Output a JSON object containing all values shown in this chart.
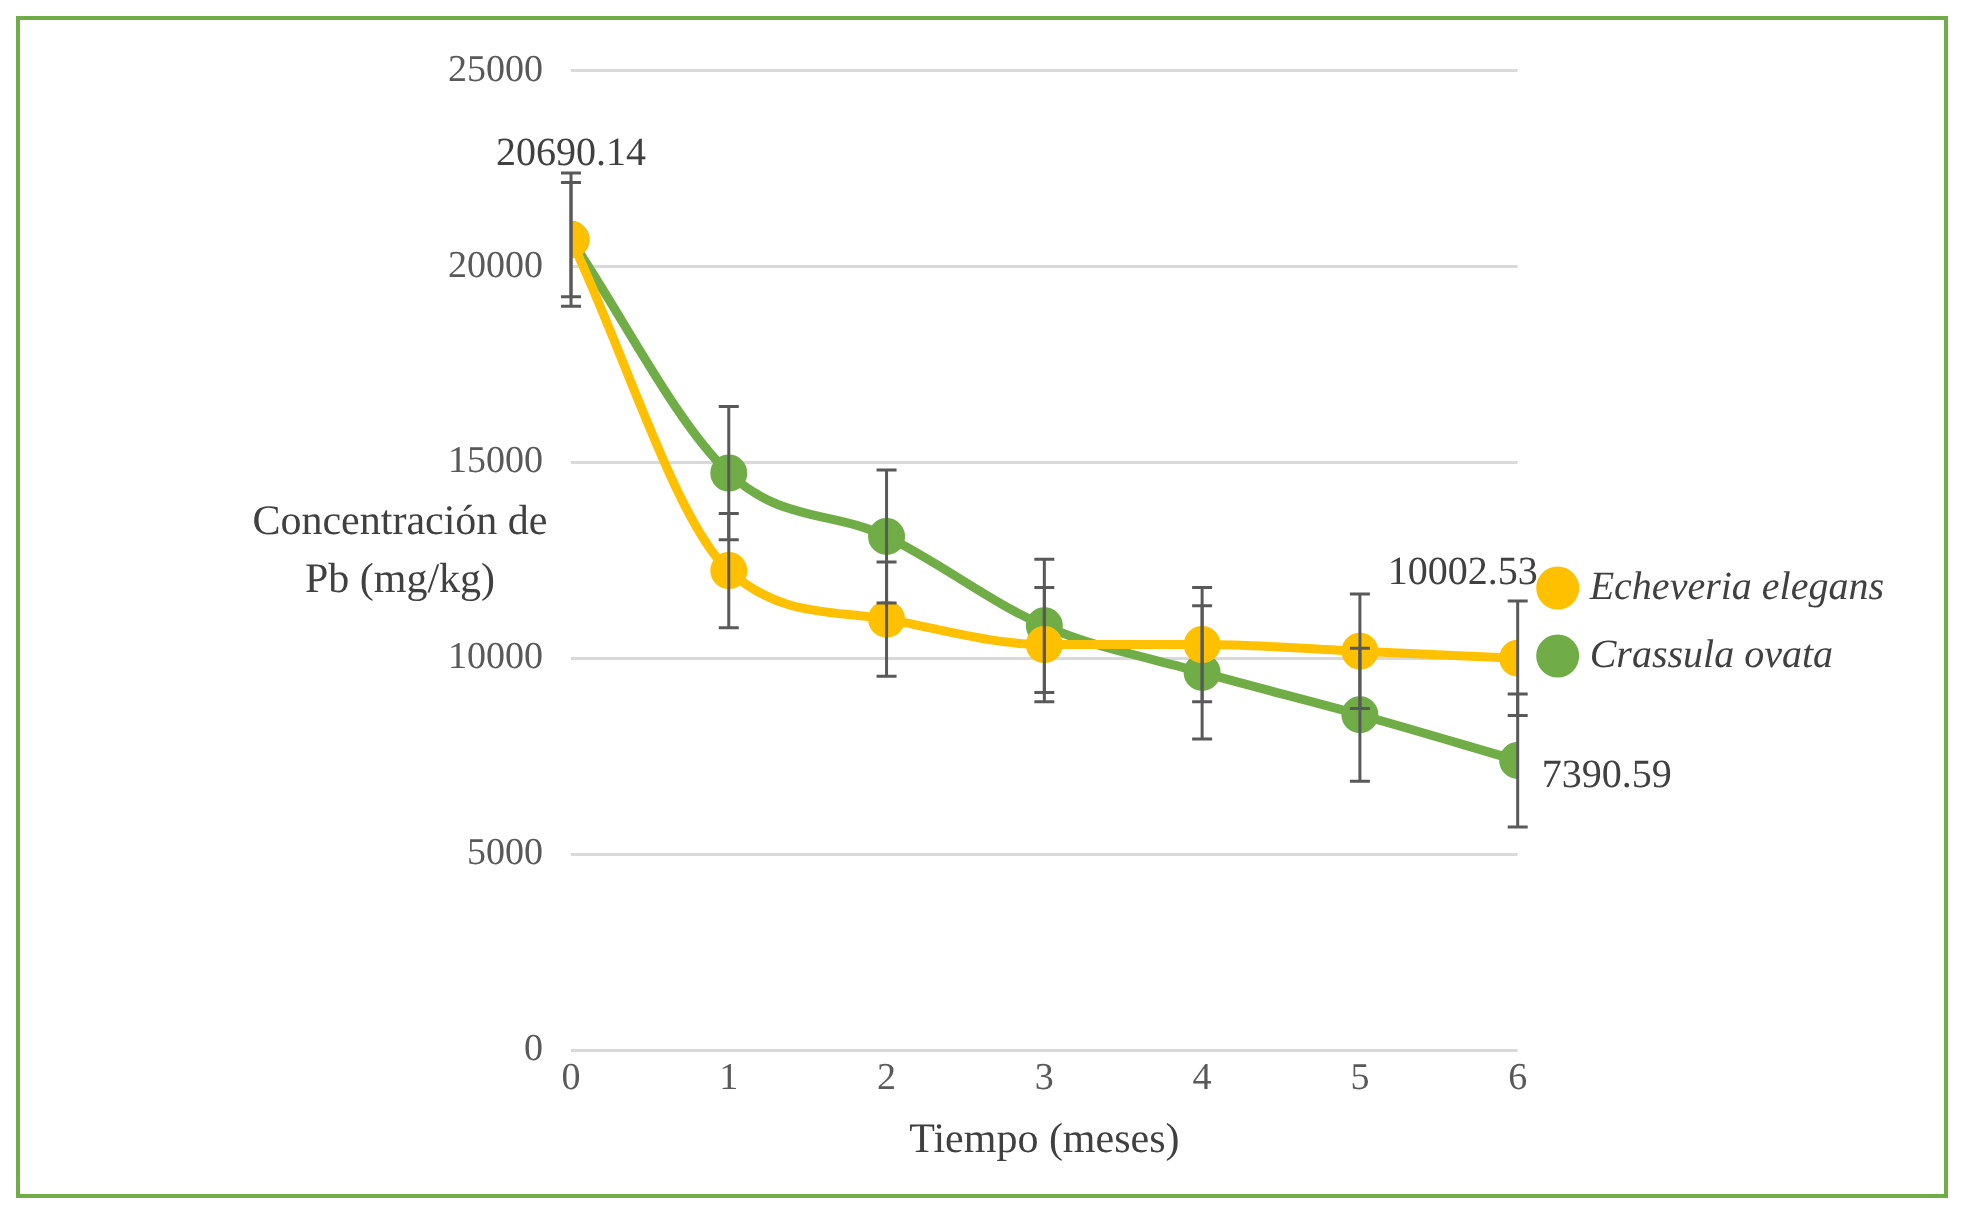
{
  "chart_data": {
    "type": "line",
    "xlabel": "Tiempo (meses)",
    "ylabel": "Concentración de Pb (mg/kg)",
    "x": [
      0,
      1,
      2,
      3,
      4,
      5,
      6
    ],
    "xlim": [
      0,
      6
    ],
    "xticks": [
      0,
      1,
      2,
      3,
      4,
      5,
      6
    ],
    "ylim": [
      0,
      25000
    ],
    "yticks": [
      0,
      5000,
      10000,
      15000,
      20000,
      25000
    ],
    "grid": "y",
    "legend": "right",
    "marker": "circle",
    "line_style": "solid",
    "series": [
      {
        "name": "Echeveria elegans",
        "color": "#ffc000",
        "values": [
          20690.14,
          12240,
          11000,
          10350,
          10350,
          10180,
          10002.53
        ],
        "errors": [
          1460,
          1460,
          1460,
          1460,
          1460,
          1460,
          1460
        ],
        "value_labels": [
          "20690.14",
          null,
          null,
          null,
          null,
          null,
          "10002.53"
        ]
      },
      {
        "name": "Crassula ovata",
        "color": "#70ad47",
        "values": [
          20690,
          14730,
          13110,
          10830,
          9640,
          8560,
          7390.59
        ],
        "errors": [
          1700,
          1700,
          1700,
          1700,
          1700,
          1700,
          1700
        ],
        "value_labels": [
          null,
          null,
          null,
          null,
          null,
          null,
          "7390.59"
        ]
      }
    ]
  }
}
